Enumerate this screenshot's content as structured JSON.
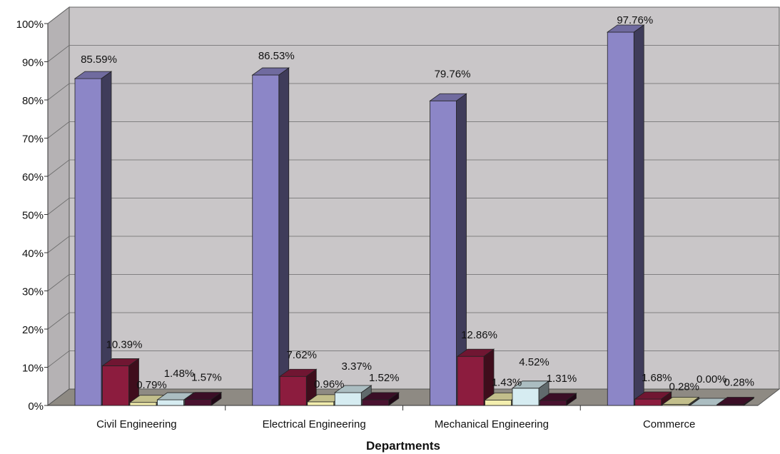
{
  "chart_data": {
    "type": "bar",
    "style": "3d-clustered",
    "categories": [
      "Civil Engineering",
      "Electrical Engineering",
      "Mechanical Engineering",
      "Commerce"
    ],
    "series": [
      {
        "values": [
          85.59,
          86.53,
          79.76,
          97.76
        ],
        "color": "#8c86c7",
        "labels": [
          "85.59%",
          "86.53%",
          "79.76%",
          "97.76%"
        ]
      },
      {
        "values": [
          10.39,
          7.62,
          12.86,
          1.68
        ],
        "color": "#8c1c3e",
        "labels": [
          "10.39%",
          "7.62%",
          "12.86%",
          "1.68%"
        ]
      },
      {
        "values": [
          0.79,
          0.96,
          1.43,
          0.28
        ],
        "color": "#f3eeae",
        "labels": [
          "0.79%",
          "0.96%",
          "1.43%",
          "0.28%"
        ]
      },
      {
        "values": [
          1.48,
          3.37,
          4.52,
          0.0
        ],
        "color": "#d6ecf1",
        "labels": [
          "1.48%",
          "3.37%",
          "4.52%",
          "0.00%"
        ]
      },
      {
        "values": [
          1.57,
          1.52,
          1.31,
          0.28
        ],
        "color": "#4a1230",
        "labels": [
          "1.57%",
          "1.52%",
          "1.31%",
          "0.28%"
        ]
      }
    ],
    "y_ticks": [
      "0%",
      "10%",
      "20%",
      "30%",
      "40%",
      "50%",
      "60%",
      "70%",
      "80%",
      "90%",
      "100%"
    ],
    "ylim": [
      0,
      100
    ],
    "xlabel": "Departments",
    "ylabel": "",
    "grid": true,
    "legend": "none",
    "wall_color": "#c9c6c8",
    "floor_color": "#8e8a83"
  }
}
